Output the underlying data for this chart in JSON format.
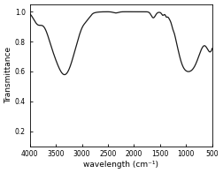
{
  "title": "",
  "xlabel": "wavelength (cm⁻¹)",
  "ylabel": "Transmittance",
  "xlim": [
    4000,
    500
  ],
  "ylim": [
    0.1,
    1.05
  ],
  "yticks": [
    0.2,
    0.4,
    0.6,
    0.8,
    1.0
  ],
  "xticks": [
    4000,
    3500,
    3000,
    2500,
    2000,
    1500,
    1000,
    500
  ],
  "line_color": "#1a1a1a",
  "line_width": 0.9,
  "background_color": "#ffffff"
}
